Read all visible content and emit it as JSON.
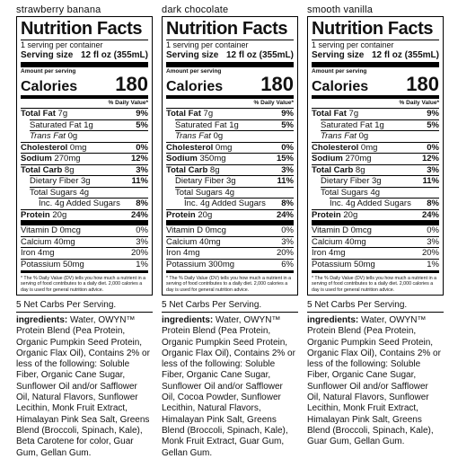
{
  "panels": [
    {
      "flavor": "strawberry banana",
      "title": "Nutrition Facts",
      "servings": "1 serving per container",
      "serving_size_label": "Serving size",
      "serving_size": "12 fl oz (355mL)",
      "amount_per_serving": "Amount per serving",
      "calories_label": "Calories",
      "calories": 180,
      "dv_header": "% Daily Value*",
      "rows": [
        {
          "name": "Total Fat",
          "amount": "7g",
          "dv": "9%"
        },
        {
          "name": "Saturated Fat",
          "amount": "1g",
          "dv": "5%"
        },
        {
          "name": "Trans Fat",
          "amount": "0g"
        },
        {
          "name": "Cholesterol",
          "amount": "0mg",
          "dv": "0%"
        },
        {
          "name": "Sodium",
          "amount": "270mg",
          "dv": "12%"
        },
        {
          "name": "Total Carb",
          "amount": "8g",
          "dv": "3%"
        },
        {
          "name": "Dietary Fiber",
          "amount": "3g",
          "dv": "11%"
        },
        {
          "name": "Total Sugars",
          "amount": "4g"
        },
        {
          "name": "Inc. 4g Added Sugars",
          "dv": "8%"
        },
        {
          "name": "Protein",
          "amount": "20g",
          "dv": "24%"
        }
      ],
      "minerals": [
        {
          "name": "Vitamin D 0mcg",
          "dv": "0%"
        },
        {
          "name": "Calcium 40mg",
          "dv": "3%"
        },
        {
          "name": "Iron 4mg",
          "dv": "20%"
        },
        {
          "name": "Potassium 50mg",
          "dv": "1%"
        }
      ],
      "footnote": "* The % Daily Value (DV) tells you how much a nutrient in a serving of food contributes to a daily diet. 2,000 calories a day is used for general nutrition advice.",
      "net_carbs": "5 Net Carbs Per Serving.",
      "ingredients_label": "ingredients:",
      "ingredients": "Water, OWYN™ Protein Blend (Pea Protein, Organic Pumpkin Seed Protein, Organic Flax Oil), Contains 2% or less of the following: Soluble Fiber, Organic Cane Sugar, Sunflower Oil and/or Safflower Oil, Natural Flavors, Sunflower Lecithin, Monk Fruit Extract, Himalayan Pink Sea Salt, Greens Blend (Broccoli, Spinach, Kale), Beta Carotene for color, Guar Gum, Gellan Gum."
    },
    {
      "flavor": "dark chocolate",
      "title": "Nutrition Facts",
      "servings": "1 serving per container",
      "serving_size_label": "Serving size",
      "serving_size": "12 fl oz (355mL)",
      "amount_per_serving": "Amount per serving",
      "calories_label": "Calories",
      "calories": 180,
      "dv_header": "% Daily Value*",
      "rows": [
        {
          "name": "Total Fat",
          "amount": "7g",
          "dv": "9%"
        },
        {
          "name": "Saturated Fat",
          "amount": "1g",
          "dv": "5%"
        },
        {
          "name": "Trans Fat",
          "amount": "0g"
        },
        {
          "name": "Cholesterol",
          "amount": "0mg",
          "dv": "0%"
        },
        {
          "name": "Sodium",
          "amount": "350mg",
          "dv": "15%"
        },
        {
          "name": "Total Carb",
          "amount": "8g",
          "dv": "3%"
        },
        {
          "name": "Dietary Fiber",
          "amount": "3g",
          "dv": "11%"
        },
        {
          "name": "Total Sugars",
          "amount": "4g"
        },
        {
          "name": "Inc. 4g Added Sugars",
          "dv": "8%"
        },
        {
          "name": "Protein",
          "amount": "20g",
          "dv": "24%"
        }
      ],
      "minerals": [
        {
          "name": "Vitamin D 0mcg",
          "dv": "0%"
        },
        {
          "name": "Calcium 40mg",
          "dv": "3%"
        },
        {
          "name": "Iron 4mg",
          "dv": "20%"
        },
        {
          "name": "Potassium 300mg",
          "dv": "6%"
        }
      ],
      "footnote": "* The % Daily Value (DV) tells you how much a nutrient in a serving of food contributes to a daily diet. 2,000 calories a day is used for general nutrition advice.",
      "net_carbs": "5 Net Carbs Per Serving.",
      "ingredients_label": "ingredients:",
      "ingredients": "Water, OWYN™ Protein Blend (Pea Protein, Organic Pumpkin Seed Protein, Organic Flax Oil), Contains 2% or less of the following: Soluble Fiber, Organic Cane Sugar, Sunflower Oil and/or Safflower Oil, Cocoa Powder, Sunflower Lecithin, Natural Flavors, Himalayan Pink Salt, Greens Blend (Broccoli, Spinach, Kale), Monk Fruit Extract, Guar Gum, Gellan Gum."
    },
    {
      "flavor": "smooth vanilla",
      "title": "Nutrition Facts",
      "servings": "1 serving per container",
      "serving_size_label": "Serving size",
      "serving_size": "12 fl oz (355mL)",
      "amount_per_serving": "Amount per serving",
      "calories_label": "Calories",
      "calories": 180,
      "dv_header": "% Daily Value*",
      "rows": [
        {
          "name": "Total Fat",
          "amount": "7g",
          "dv": "9%"
        },
        {
          "name": "Saturated Fat",
          "amount": "1g",
          "dv": "5%"
        },
        {
          "name": "Trans Fat",
          "amount": "0g"
        },
        {
          "name": "Cholesterol",
          "amount": "0mg",
          "dv": "0%"
        },
        {
          "name": "Sodium",
          "amount": "270mg",
          "dv": "12%"
        },
        {
          "name": "Total Carb",
          "amount": "8g",
          "dv": "3%"
        },
        {
          "name": "Dietary Fiber",
          "amount": "3g",
          "dv": "11%"
        },
        {
          "name": "Total Sugars",
          "amount": "4g"
        },
        {
          "name": "Inc. 4g Added Sugars",
          "dv": "8%"
        },
        {
          "name": "Protein",
          "amount": "20g",
          "dv": "24%"
        }
      ],
      "minerals": [
        {
          "name": "Vitamin D 0mcg",
          "dv": "0%"
        },
        {
          "name": "Calcium 40mg",
          "dv": "3%"
        },
        {
          "name": "Iron 4mg",
          "dv": "20%"
        },
        {
          "name": "Potassium 50mg",
          "dv": "1%"
        }
      ],
      "footnote": "* The % Daily Value (DV) tells you how much a nutrient in a serving of food contributes to a daily diet. 2,000 calories a day is used for general nutrition advice.",
      "net_carbs": "5 Net Carbs Per Serving.",
      "ingredients_label": "ingredients:",
      "ingredients": "Water, OWYN™ Protein Blend (Pea Protein, Organic Pumpkin Seed Protein, Organic Flax Oil), Contains 2% or less of the following: Soluble Fiber, Organic Cane Sugar, Sunflower Oil and/or Safflower Oil, Natural Flavors, Sunflower Lecithin, Monk Fruit Extract, Himalayan Pink Salt, Greens Blend (Broccoli, Spinach, Kale), Guar Gum, Gellan Gum."
    }
  ]
}
